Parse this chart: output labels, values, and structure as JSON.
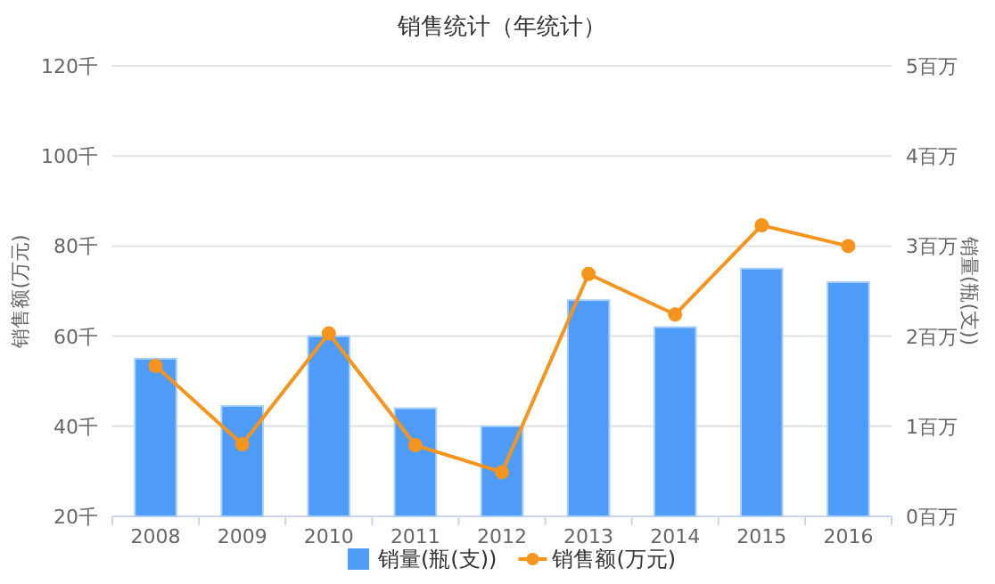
{
  "chart_data": {
    "type": "bar",
    "title": "销售统计（年统计）",
    "categories": [
      "2008",
      "2009",
      "2010",
      "2011",
      "2012",
      "2013",
      "2014",
      "2015",
      "2016"
    ],
    "series": [
      {
        "name": "销量(瓶(支))",
        "color": "#4e9cf7",
        "values": [
          55,
          44.5,
          60,
          44,
          40,
          68,
          62,
          75,
          72
        ]
      },
      {
        "name": "销售额(万元)",
        "type": "line",
        "axis": "y2",
        "color": "#f7941d",
        "values": [
          1.67,
          0.8,
          2.03,
          0.79,
          0.49,
          2.69,
          2.24,
          3.23,
          3.0
        ]
      }
    ],
    "ylabel": "销售额(万元)",
    "y2label": "销量(瓶(支))",
    "ylim": [
      20,
      120
    ],
    "yticks": [
      {
        "value": 20,
        "label": "20千"
      },
      {
        "value": 40,
        "label": "40千"
      },
      {
        "value": 60,
        "label": "60千"
      },
      {
        "value": 80,
        "label": "80千"
      },
      {
        "value": 100,
        "label": "100千"
      },
      {
        "value": 120,
        "label": "120千"
      }
    ],
    "y2lim": [
      0,
      5
    ],
    "y2ticks": [
      {
        "value": 0,
        "label": "0百万"
      },
      {
        "value": 1,
        "label": "1百万"
      },
      {
        "value": 2,
        "label": "2百万"
      },
      {
        "value": 3,
        "label": "3百万"
      },
      {
        "value": 4,
        "label": "4百万"
      },
      {
        "value": 5,
        "label": "5百万"
      }
    ],
    "grid": "y",
    "legend": "bottom",
    "marker": "circle"
  }
}
